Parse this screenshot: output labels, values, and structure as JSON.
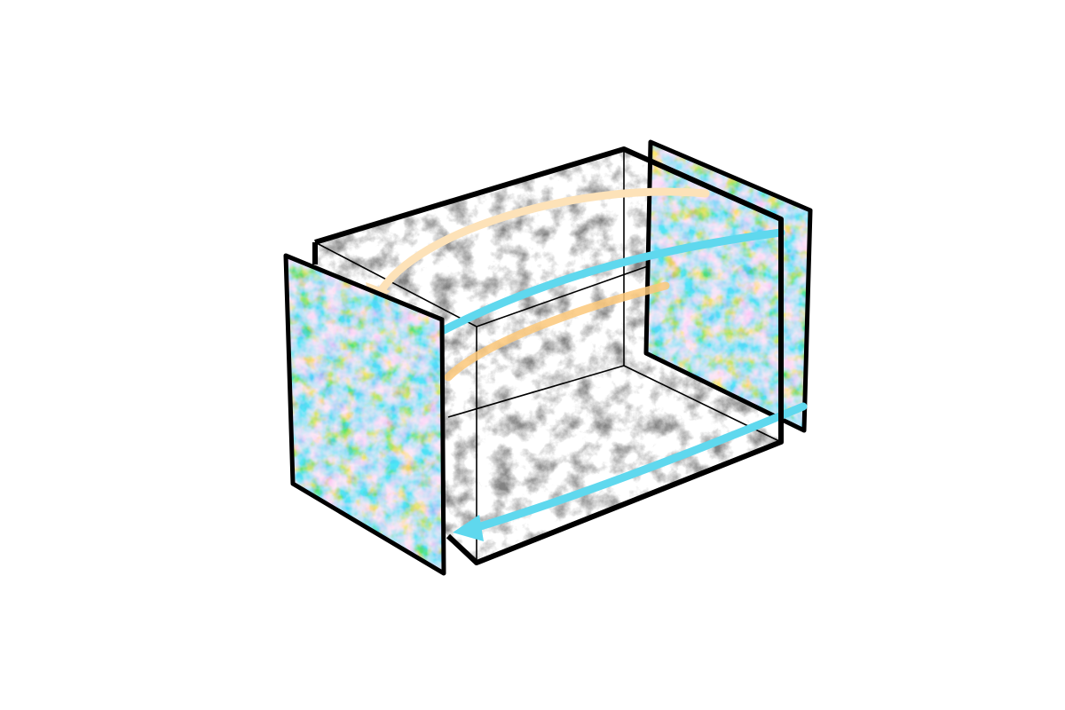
{
  "diagram": {
    "colors": {
      "background": "#ffffff",
      "box_edge": "#000000",
      "map_warm": "#f28c00",
      "map_warm_light": "#f7c46a",
      "map_cold": "#1aa0f0",
      "map_cold_deep": "#0a5fd6",
      "map_pale": "#cfe6ee",
      "arrow_warm": "#fde2b8",
      "arrow_warm_strong": "#fbc87a",
      "arrow_cold": "#5fd8ee",
      "matter_density": "#1a1a1a"
    },
    "elements": [
      {
        "name": "simulation-box",
        "description_kind": "3d-box"
      },
      {
        "name": "cmb-map-left"
      },
      {
        "name": "cmb-map-right"
      },
      {
        "name": "arrow-warm-upper"
      },
      {
        "name": "arrow-warm-lower"
      },
      {
        "name": "arrow-cold-upper"
      },
      {
        "name": "arrow-cold-lower"
      }
    ]
  }
}
